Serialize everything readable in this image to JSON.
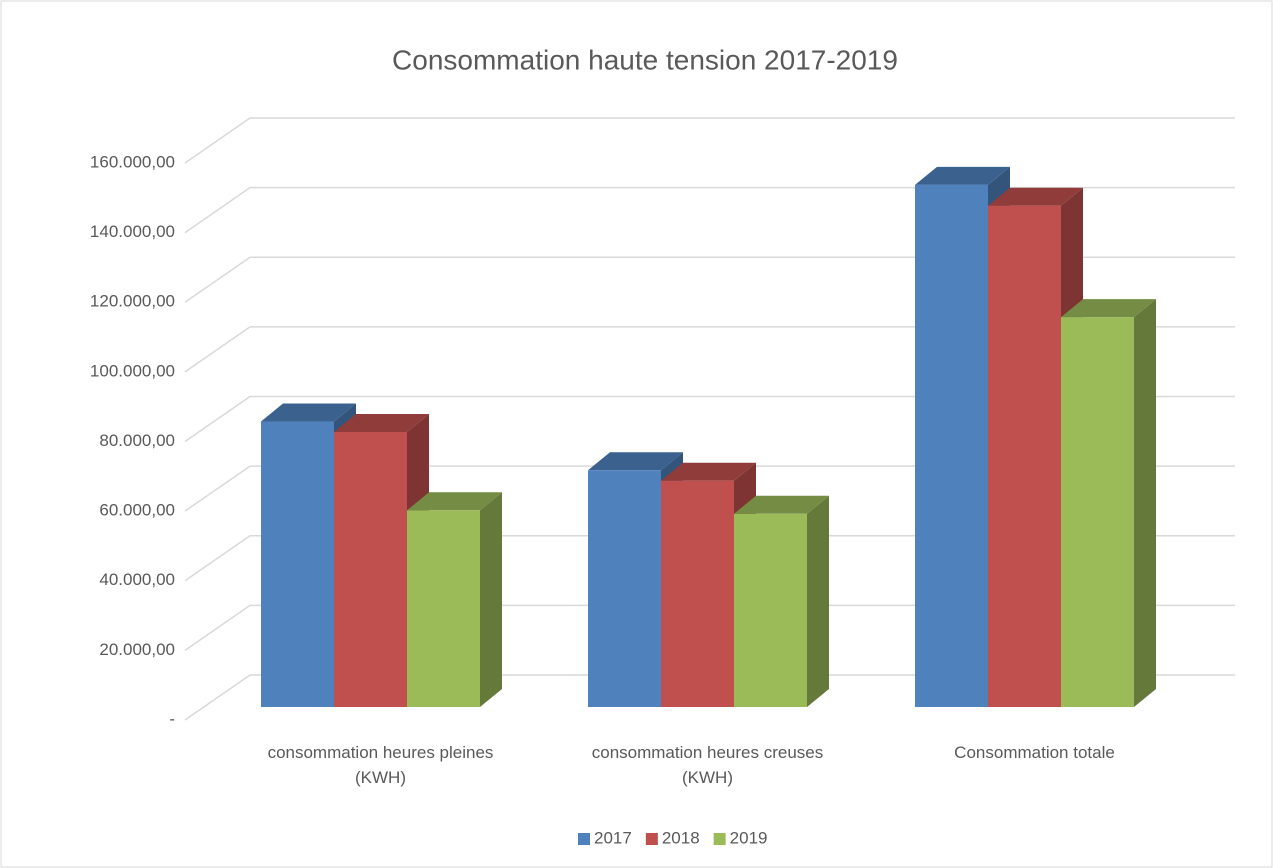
{
  "chart_data": {
    "type": "bar3d",
    "title": "Consommation haute tension 2017-2019",
    "categories": [
      "consommation heures pleines (KWH)",
      "consommation heures creuses (KWH)",
      "Consommation totale"
    ],
    "series": [
      {
        "name": "2017",
        "color": "#4f81bd",
        "values": [
          82000,
          68000,
          150000
        ]
      },
      {
        "name": "2018",
        "color": "#c0504d",
        "values": [
          79000,
          65000,
          144000
        ]
      },
      {
        "name": "2019",
        "color": "#9bbb59",
        "values": [
          56500,
          55500,
          112000
        ]
      }
    ],
    "ylim": [
      0,
      160000
    ],
    "yticks": [
      {
        "value": 0,
        "label": "-"
      },
      {
        "value": 20000,
        "label": "20.000,00"
      },
      {
        "value": 40000,
        "label": "40.000,00"
      },
      {
        "value": 60000,
        "label": "60.000,00"
      },
      {
        "value": 80000,
        "label": "80.000,00"
      },
      {
        "value": 100000,
        "label": "100.000,00"
      },
      {
        "value": 120000,
        "label": "120.000,00"
      },
      {
        "value": 140000,
        "label": "140.000,00"
      },
      {
        "value": 160000,
        "label": "160.000,00"
      }
    ],
    "grid": true,
    "legend": "bottom"
  }
}
